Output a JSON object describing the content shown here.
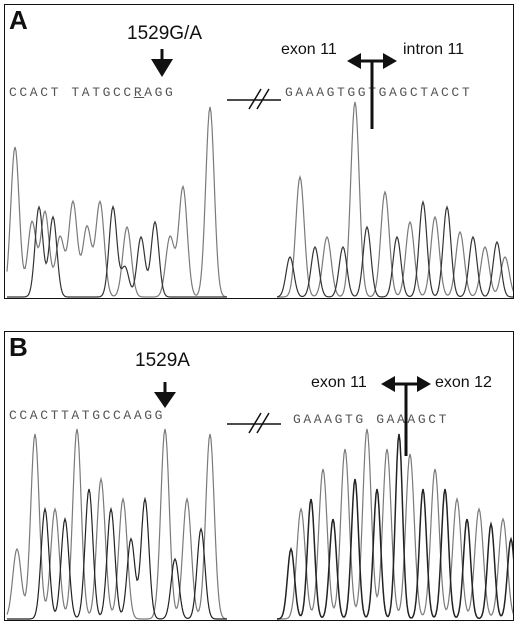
{
  "panels": [
    {
      "id": "A",
      "letter": "A",
      "mutation_label": "1529G/A",
      "left_sequence_pre": "CCACT TATGCC",
      "left_sequence_var": "R",
      "left_sequence_post": "AGG",
      "right_sequence": "GAAAGTGGTGAGCTACCT",
      "junction_left": "exon 11",
      "junction_right": "intron 11"
    },
    {
      "id": "B",
      "letter": "B",
      "mutation_label": "1529A",
      "left_sequence_pre": "CCACTTATGCCAAGG",
      "left_sequence_var": "",
      "left_sequence_post": "",
      "right_sequence": "GAAAGTG GAAAGCT",
      "junction_left": "exon 11",
      "junction_right": "exon 12"
    }
  ],
  "colors": {
    "trace": "#7a7a7a",
    "trace_dark": "#222222",
    "frame": "#111111"
  }
}
